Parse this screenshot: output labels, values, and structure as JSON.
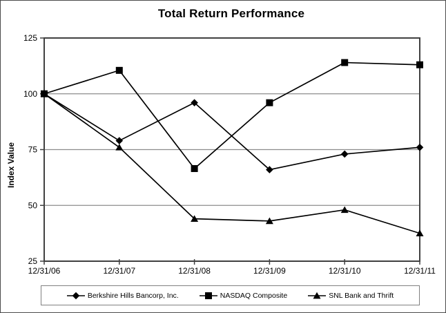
{
  "window": {
    "background": "#ffffff",
    "border_color": "#4a4a4a"
  },
  "chart_data": {
    "type": "line",
    "title": "Total Return Performance",
    "xlabel": "",
    "ylabel": "Index Value",
    "categories": [
      "12/31/06",
      "12/31/07",
      "12/31/08",
      "12/31/09",
      "12/31/10",
      "12/31/11"
    ],
    "ylim": [
      25,
      125
    ],
    "yticks": [
      25,
      50,
      75,
      100,
      125
    ],
    "grid": true,
    "legend_position": "bottom",
    "series": [
      {
        "name": "Berkshire Hills Bancorp, Inc.",
        "marker": "diamond",
        "color": "#000000",
        "values": [
          100,
          79,
          96,
          66,
          73,
          76
        ]
      },
      {
        "name": "NASDAQ Composite",
        "marker": "square",
        "color": "#000000",
        "values": [
          100,
          110.5,
          66.5,
          96,
          114,
          113
        ]
      },
      {
        "name": "SNL Bank and Thrift",
        "marker": "triangle",
        "color": "#000000",
        "values": [
          100,
          76,
          44,
          43,
          48,
          37.5
        ]
      }
    ],
    "colors": {
      "grid": "#8c8c8c",
      "frame": "#404040",
      "series": "#000000",
      "text": "#000000",
      "legend_border": "#808080"
    }
  }
}
